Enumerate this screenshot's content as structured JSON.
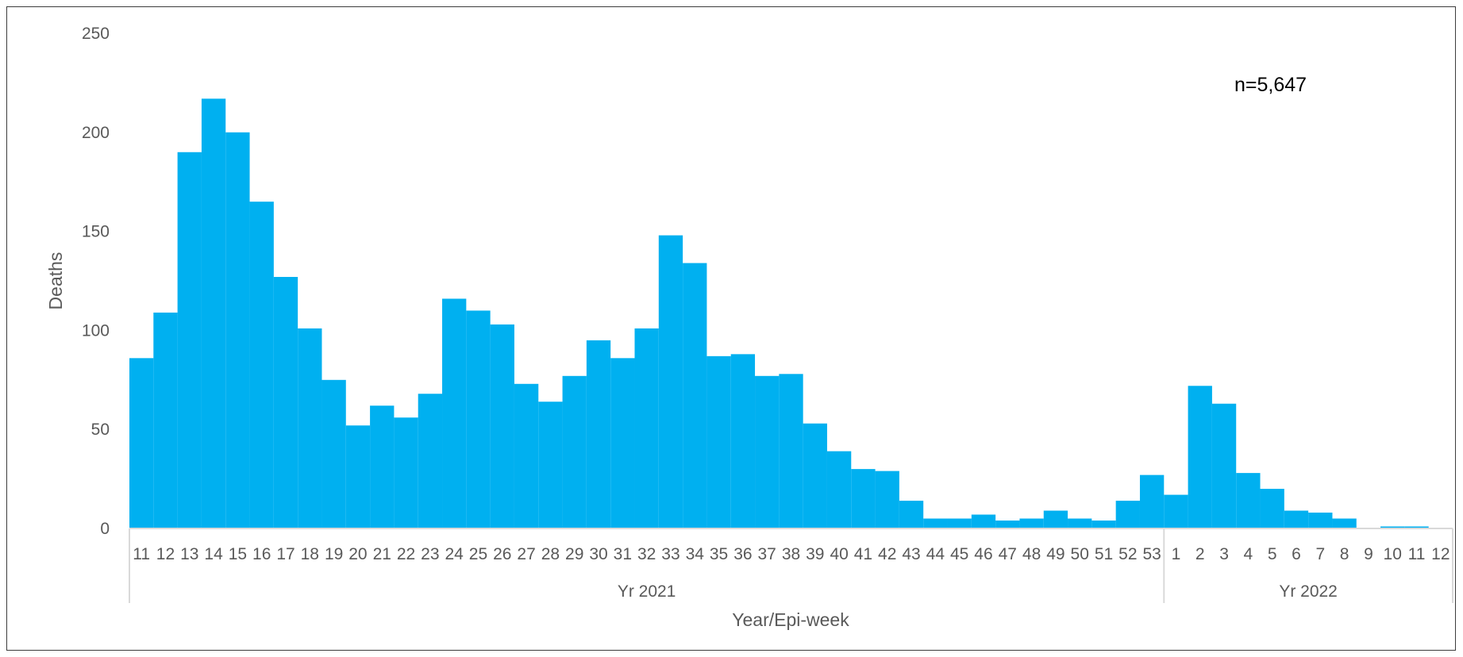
{
  "colors": {
    "bar": "#00B0F0",
    "axis": "#D9D9D9",
    "text": "#595959"
  },
  "chart_data": {
    "type": "bar",
    "title": "",
    "xlabel": "Year/Epi-week",
    "ylabel": "Deaths",
    "ylim": [
      0,
      250
    ],
    "yticks": [
      0,
      50,
      100,
      150,
      200,
      250
    ],
    "annotation": "n=5,647",
    "grid": false,
    "groups": [
      {
        "label": "Yr 2021",
        "start": 0,
        "end": 43
      },
      {
        "label": "Yr 2022",
        "start": 43,
        "end": 55
      }
    ],
    "categories": [
      "11",
      "12",
      "13",
      "14",
      "15",
      "16",
      "17",
      "18",
      "19",
      "20",
      "21",
      "22",
      "23",
      "24",
      "25",
      "26",
      "27",
      "28",
      "29",
      "30",
      "31",
      "32",
      "33",
      "34",
      "35",
      "36",
      "37",
      "38",
      "39",
      "40",
      "41",
      "42",
      "43",
      "44",
      "45",
      "46",
      "47",
      "48",
      "49",
      "50",
      "51",
      "52",
      "53",
      "1",
      "2",
      "3",
      "4",
      "5",
      "6",
      "7",
      "8",
      "9",
      "10",
      "11",
      "12"
    ],
    "values": [
      86,
      109,
      190,
      217,
      200,
      165,
      127,
      101,
      75,
      52,
      62,
      56,
      68,
      116,
      110,
      103,
      73,
      64,
      77,
      95,
      86,
      101,
      148,
      134,
      87,
      88,
      77,
      78,
      53,
      39,
      30,
      29,
      14,
      5,
      5,
      7,
      4,
      5,
      9,
      5,
      4,
      14,
      27,
      17,
      72,
      63,
      28,
      20,
      9,
      8,
      5,
      0,
      1,
      1,
      0
    ]
  }
}
